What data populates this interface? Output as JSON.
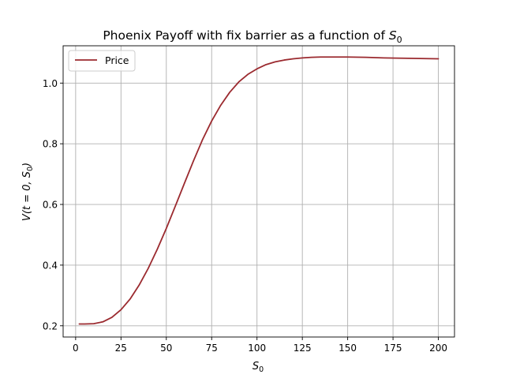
{
  "chart_data": {
    "type": "line",
    "title": "Phoenix Payoff with fix barrier as a function of S₀",
    "title_main": "Phoenix Payoff with fix barrier as a function of ",
    "title_var": "S",
    "title_sub": "0",
    "xlabel": "S₀",
    "xlabel_var": "S",
    "xlabel_sub": "0",
    "ylabel": "V(t = 0, S₀)",
    "ylabel_prefix": "V(t = 0, ",
    "ylabel_var": "S",
    "ylabel_sub": "0",
    "ylabel_suffix": ")",
    "xlim": [
      -6.9,
      208.9
    ],
    "ylim": [
      0.163,
      1.123
    ],
    "xticks": [
      0,
      25,
      50,
      75,
      100,
      125,
      150,
      175,
      200
    ],
    "yticks": [
      0.2,
      0.4,
      0.6,
      0.8,
      1.0
    ],
    "ytick_labels": [
      "0.2",
      "0.4",
      "0.6",
      "0.8",
      "1.0"
    ],
    "grid": true,
    "legend_position": "upper-left",
    "series": [
      {
        "name": "Price",
        "color": "#9b2a2f",
        "x": [
          2,
          5,
          10,
          15,
          20,
          25,
          30,
          35,
          40,
          45,
          50,
          55,
          60,
          65,
          70,
          75,
          80,
          85,
          90,
          95,
          100,
          105,
          110,
          115,
          120,
          125,
          130,
          135,
          140,
          150,
          160,
          170,
          180,
          190,
          200
        ],
        "y": [
          0.206,
          0.206,
          0.207,
          0.213,
          0.228,
          0.253,
          0.288,
          0.334,
          0.389,
          0.452,
          0.521,
          0.595,
          0.67,
          0.744,
          0.814,
          0.875,
          0.927,
          0.97,
          1.004,
          1.029,
          1.047,
          1.061,
          1.07,
          1.076,
          1.08,
          1.083,
          1.085,
          1.086,
          1.086,
          1.086,
          1.085,
          1.083,
          1.082,
          1.081,
          1.08
        ]
      }
    ]
  }
}
